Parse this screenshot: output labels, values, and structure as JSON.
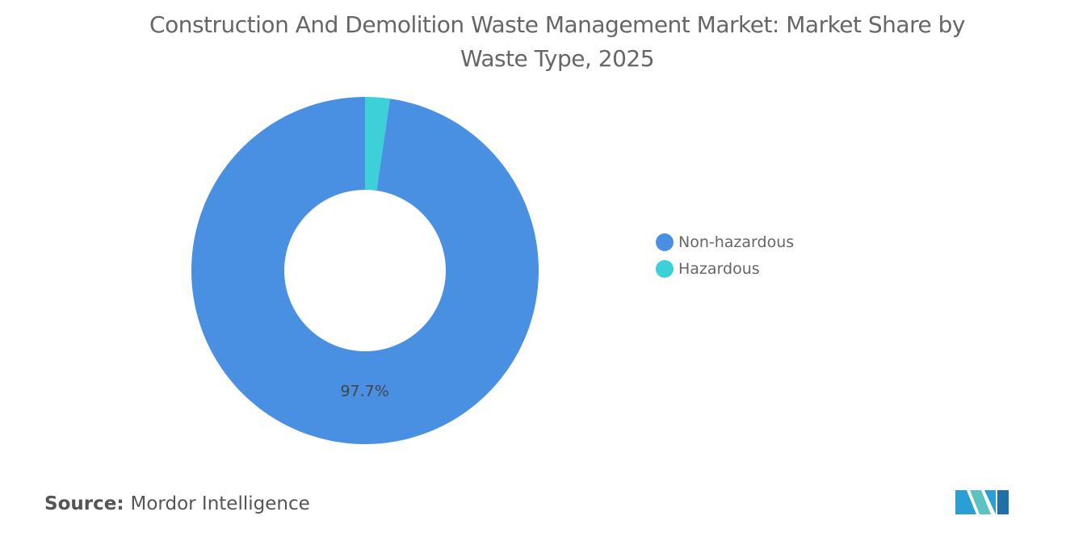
{
  "chart_data": {
    "type": "donut",
    "title": "Construction And Demolition Waste Management Market: Market Share by Waste Type, 2025",
    "categories": [
      "Non-hazardous",
      "Hazardous"
    ],
    "values": [
      97.7,
      2.3
    ],
    "value_labels": [
      "97.7%",
      null
    ],
    "colors": [
      "#4a90e2",
      "#3dd0d8"
    ],
    "legend": "right"
  },
  "footer": {
    "source_label": "Source:",
    "source": "Mordor Intelligence"
  }
}
